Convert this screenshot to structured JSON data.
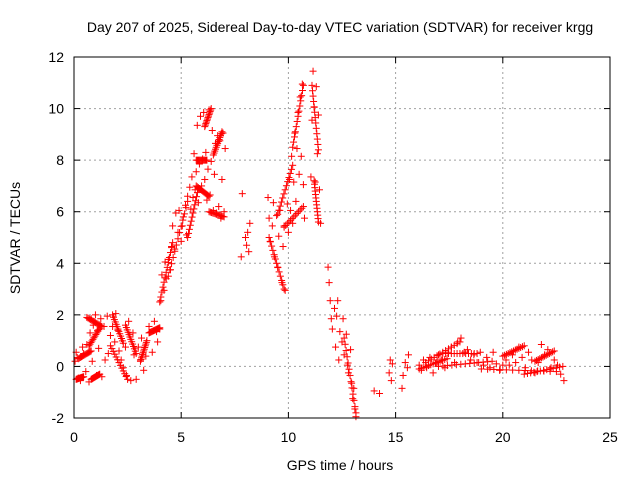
{
  "chart_data": {
    "type": "scatter",
    "title": "Day 207 of 2025, Sidereal Day-to-day VTEC variation (SDTVAR) for receiver krgg",
    "xlabel": "GPS time / hours",
    "ylabel": "SDTVAR / TECUs",
    "xlim": [
      0,
      25
    ],
    "ylim": [
      -2,
      12
    ],
    "xticks": [
      0,
      5,
      10,
      15,
      20,
      25
    ],
    "yticks": [
      -2,
      0,
      2,
      4,
      6,
      8,
      10,
      12
    ],
    "grid": true,
    "marker": "plus",
    "series": [
      {
        "name": "SDTVAR",
        "color": "#ff0000",
        "points": [
          [
            0.05,
            0.2
          ],
          [
            0.1,
            0.55
          ],
          [
            0.15,
            0.35
          ],
          [
            0.2,
            -0.45
          ],
          [
            0.3,
            -0.55
          ],
          [
            0.4,
            0.75
          ],
          [
            0.45,
            0.5
          ],
          [
            0.55,
            -0.2
          ],
          [
            0.6,
            0.85
          ],
          [
            0.7,
            -0.6
          ],
          [
            0.75,
            1.3
          ],
          [
            0.8,
            1.85
          ],
          [
            0.85,
            0.2
          ],
          [
            0.9,
            1.6
          ],
          [
            1.0,
            2.0
          ],
          [
            1.05,
            -0.35
          ],
          [
            1.1,
            1.4
          ],
          [
            1.15,
            0.7
          ],
          [
            1.25,
            1.85
          ],
          [
            1.3,
            -0.4
          ],
          [
            1.4,
            1.55
          ],
          [
            1.45,
            0.25
          ],
          [
            1.55,
            1.95
          ],
          [
            1.6,
            0.5
          ],
          [
            1.7,
            1.2
          ],
          [
            1.8,
            1.55
          ],
          [
            1.9,
            0.95
          ],
          [
            1.95,
            2.05
          ],
          [
            2.05,
            1.4
          ],
          [
            2.1,
            0.6
          ],
          [
            2.2,
            0.25
          ],
          [
            2.3,
            -0.05
          ],
          [
            2.4,
            0.75
          ],
          [
            2.45,
            -0.35
          ],
          [
            2.55,
            1.75
          ],
          [
            2.65,
            -0.55
          ],
          [
            2.75,
            1.3
          ],
          [
            2.8,
            0.45
          ],
          [
            2.9,
            -0.5
          ],
          [
            3.0,
            0.75
          ],
          [
            3.1,
            0.25
          ],
          [
            3.15,
            1.1
          ],
          [
            3.25,
            -0.15
          ],
          [
            3.35,
            0.4
          ],
          [
            3.5,
            1.55
          ],
          [
            3.65,
            0.55
          ],
          [
            3.75,
            1.75
          ],
          [
            3.85,
            1.35
          ],
          [
            3.9,
            0.95
          ],
          [
            4.0,
            1.45
          ],
          [
            4.05,
            2.55
          ],
          [
            4.1,
            3.55
          ],
          [
            4.2,
            2.95
          ],
          [
            4.25,
            4.05
          ],
          [
            4.3,
            3.4
          ],
          [
            4.4,
            4.15
          ],
          [
            4.5,
            3.75
          ],
          [
            4.55,
            4.65
          ],
          [
            4.6,
            5.45
          ],
          [
            4.7,
            4.55
          ],
          [
            4.75,
            5.95
          ],
          [
            4.85,
            5.2
          ],
          [
            4.9,
            6.05
          ],
          [
            5.0,
            4.85
          ],
          [
            5.05,
            5.45
          ],
          [
            5.1,
            5.8
          ],
          [
            5.2,
            6.25
          ],
          [
            5.25,
            5.1
          ],
          [
            5.3,
            6.6
          ],
          [
            5.4,
            6.95
          ],
          [
            5.45,
            6.1
          ],
          [
            5.5,
            7.35
          ],
          [
            5.55,
            6.55
          ],
          [
            5.6,
            8.25
          ],
          [
            5.65,
            6.85
          ],
          [
            5.7,
            7.55
          ],
          [
            5.75,
            9.35
          ],
          [
            5.8,
            6.35
          ],
          [
            5.85,
            7.85
          ],
          [
            5.9,
            9.7
          ],
          [
            5.95,
            7.0
          ],
          [
            6.0,
            8.05
          ],
          [
            6.05,
            9.85
          ],
          [
            6.1,
            7.25
          ],
          [
            6.15,
            8.3
          ],
          [
            6.2,
            6.45
          ],
          [
            6.25,
            7.65
          ],
          [
            6.3,
            9.95
          ],
          [
            6.35,
            6.65
          ],
          [
            6.4,
            7.95
          ],
          [
            6.45,
            9.15
          ],
          [
            6.5,
            6.05
          ],
          [
            6.55,
            7.45
          ],
          [
            6.6,
            8.65
          ],
          [
            6.65,
            5.95
          ],
          [
            6.7,
            8.95
          ],
          [
            6.75,
            6.2
          ],
          [
            6.8,
            8.75
          ],
          [
            6.85,
            5.75
          ],
          [
            6.9,
            7.25
          ],
          [
            6.95,
            9.05
          ],
          [
            7.0,
            6.0
          ],
          [
            7.05,
            8.45
          ],
          [
            7.8,
            4.25
          ],
          [
            7.85,
            6.7
          ],
          [
            8.0,
            5.0
          ],
          [
            8.05,
            4.7
          ],
          [
            8.1,
            5.2
          ],
          [
            8.15,
            4.45
          ],
          [
            8.2,
            5.55
          ],
          [
            9.05,
            6.55
          ],
          [
            9.1,
            5.75
          ],
          [
            9.15,
            4.85
          ],
          [
            9.25,
            5.45
          ],
          [
            9.3,
            6.35
          ],
          [
            9.35,
            4.25
          ],
          [
            9.45,
            5.85
          ],
          [
            9.5,
            3.85
          ],
          [
            9.55,
            5.05
          ],
          [
            9.6,
            6.05
          ],
          [
            9.7,
            3.25
          ],
          [
            9.75,
            4.65
          ],
          [
            9.8,
            5.45
          ],
          [
            9.85,
            2.95
          ],
          [
            9.95,
            6.3
          ],
          [
            10.0,
            5.2
          ],
          [
            10.05,
            7.25
          ],
          [
            10.1,
            6.05
          ],
          [
            10.15,
            8.15
          ],
          [
            10.2,
            5.55
          ],
          [
            10.25,
            7.15
          ],
          [
            10.3,
            9.05
          ],
          [
            10.35,
            6.4
          ],
          [
            10.4,
            8.45
          ],
          [
            10.45,
            9.85
          ],
          [
            10.5,
            7.45
          ],
          [
            10.55,
            10.45
          ],
          [
            10.6,
            8.15
          ],
          [
            10.65,
            10.95
          ],
          [
            10.7,
            7.05
          ],
          [
            10.75,
            5.75
          ],
          [
            11.05,
            7.35
          ],
          [
            11.1,
            9.55
          ],
          [
            11.15,
            11.45
          ],
          [
            11.2,
            10.05
          ],
          [
            11.25,
            7.15
          ],
          [
            11.3,
            10.85
          ],
          [
            11.35,
            8.25
          ],
          [
            11.4,
            9.75
          ],
          [
            11.45,
            6.85
          ],
          [
            11.5,
            5.55
          ],
          [
            11.85,
            3.85
          ],
          [
            11.9,
            3.25
          ],
          [
            11.95,
            2.55
          ],
          [
            12.0,
            1.85
          ],
          [
            12.05,
            1.45
          ],
          [
            12.15,
            2.25
          ],
          [
            12.2,
            0.75
          ],
          [
            12.25,
            1.95
          ],
          [
            12.3,
            2.55
          ],
          [
            12.35,
            0.25
          ],
          [
            12.4,
            1.35
          ],
          [
            12.5,
            0.95
          ],
          [
            12.55,
            1.85
          ],
          [
            12.6,
            0.45
          ],
          [
            12.7,
            1.25
          ],
          [
            12.75,
            0.05
          ],
          [
            12.8,
            -0.25
          ],
          [
            12.9,
            0.65
          ],
          [
            12.95,
            -0.65
          ],
          [
            13.0,
            -1.25
          ],
          [
            13.05,
            -0.85
          ],
          [
            13.1,
            -1.65
          ],
          [
            13.15,
            -1.95
          ],
          [
            14.0,
            -0.95
          ],
          [
            14.25,
            -1.05
          ],
          [
            14.7,
            -0.25
          ],
          [
            14.75,
            0.25
          ],
          [
            14.8,
            -0.55
          ],
          [
            14.85,
            0.1
          ],
          [
            15.3,
            -0.85
          ],
          [
            15.35,
            -0.35
          ],
          [
            15.45,
            0.15
          ],
          [
            15.55,
            -0.05
          ],
          [
            15.6,
            0.45
          ],
          [
            16.1,
            0.05
          ],
          [
            16.2,
            -0.15
          ],
          [
            16.3,
            0.25
          ],
          [
            16.45,
            -0.05
          ],
          [
            16.6,
            0.35
          ],
          [
            16.75,
            -0.25
          ],
          [
            16.9,
            0.15
          ],
          [
            17.0,
            0.45
          ],
          [
            17.15,
            0.25
          ],
          [
            17.3,
            -0.05
          ],
          [
            17.45,
            0.55
          ],
          [
            17.6,
            0.75
          ],
          [
            17.75,
            0.15
          ],
          [
            17.9,
            0.95
          ],
          [
            18.05,
            1.1
          ],
          [
            18.2,
            0.55
          ],
          [
            18.35,
            0.65
          ],
          [
            18.5,
            0.25
          ],
          [
            18.65,
            0.45
          ],
          [
            18.8,
            0.15
          ],
          [
            18.95,
            0.55
          ],
          [
            19.1,
            0.05
          ],
          [
            19.25,
            0.35
          ],
          [
            19.4,
            -0.05
          ],
          [
            19.55,
            0.55
          ],
          [
            19.7,
            0.1
          ],
          [
            19.85,
            -0.15
          ],
          [
            20.0,
            0.05
          ],
          [
            20.15,
            0.25
          ],
          [
            20.3,
            0.05
          ],
          [
            20.45,
            0.45
          ],
          [
            20.6,
            0.15
          ],
          [
            20.75,
            0.75
          ],
          [
            20.9,
            0.35
          ],
          [
            21.05,
            -0.05
          ],
          [
            21.2,
            0.55
          ],
          [
            21.35,
            0.25
          ],
          [
            21.5,
            -0.25
          ],
          [
            21.65,
            0.15
          ],
          [
            21.8,
            0.85
          ],
          [
            21.95,
            0.45
          ],
          [
            22.1,
            0.65
          ],
          [
            22.25,
            -0.05
          ],
          [
            22.4,
            0.25
          ],
          [
            22.55,
            0.05
          ],
          [
            22.7,
            -0.3
          ],
          [
            22.85,
            -0.55
          ]
        ],
        "strokes": [
          [
            [
              0.1,
              -0.5
            ],
            [
              0.45,
              -0.4
            ]
          ],
          [
            [
              0.2,
              0.3
            ],
            [
              0.8,
              0.6
            ]
          ],
          [
            [
              0.8,
              -0.5
            ],
            [
              1.2,
              -0.3
            ]
          ],
          [
            [
              0.6,
              1.9
            ],
            [
              1.3,
              1.55
            ]
          ],
          [
            [
              0.7,
              0.8
            ],
            [
              1.25,
              1.55
            ]
          ],
          [
            [
              1.7,
              0.8
            ],
            [
              2.5,
              -0.5
            ]
          ],
          [
            [
              1.8,
              2.0
            ],
            [
              2.3,
              0.9
            ]
          ],
          [
            [
              2.4,
              1.6
            ],
            [
              2.9,
              0.5
            ]
          ],
          [
            [
              3.1,
              0.2
            ],
            [
              3.4,
              1.0
            ]
          ],
          [
            [
              3.5,
              1.3
            ],
            [
              4.0,
              1.5
            ]
          ],
          [
            [
              4.0,
              2.5
            ],
            [
              4.6,
              4.8
            ]
          ],
          [
            [
              4.4,
              3.5
            ],
            [
              5.3,
              6.4
            ]
          ],
          [
            [
              5.3,
              5.0
            ],
            [
              5.8,
              6.9
            ]
          ],
          [
            [
              5.7,
              8.0
            ],
            [
              6.2,
              8.0
            ]
          ],
          [
            [
              5.7,
              7.0
            ],
            [
              6.3,
              6.6
            ]
          ],
          [
            [
              6.1,
              9.3
            ],
            [
              6.4,
              10.0
            ]
          ],
          [
            [
              6.3,
              6.0
            ],
            [
              7.0,
              5.8
            ]
          ],
          [
            [
              6.5,
              8.2
            ],
            [
              6.9,
              9.1
            ]
          ],
          [
            [
              9.1,
              5.0
            ],
            [
              9.8,
              3.0
            ]
          ],
          [
            [
              9.5,
              5.9
            ],
            [
              10.2,
              7.8
            ]
          ],
          [
            [
              9.8,
              5.4
            ],
            [
              10.7,
              6.2
            ]
          ],
          [
            [
              10.2,
              8.5
            ],
            [
              10.7,
              10.9
            ]
          ],
          [
            [
              11.1,
              10.9
            ],
            [
              11.4,
              8.4
            ]
          ],
          [
            [
              11.2,
              7.2
            ],
            [
              11.4,
              5.6
            ]
          ],
          [
            [
              12.6,
              1.1
            ],
            [
              13.15,
              -1.8
            ]
          ],
          [
            [
              16.1,
              -0.1
            ],
            [
              17.4,
              0.3
            ]
          ],
          [
            [
              16.4,
              0.15
            ],
            [
              18.0,
              0.95
            ]
          ],
          [
            [
              17.0,
              0.0
            ],
            [
              19.5,
              0.2
            ]
          ],
          [
            [
              17.2,
              0.5
            ],
            [
              18.8,
              0.5
            ]
          ],
          [
            [
              19.0,
              -0.1
            ],
            [
              22.5,
              -0.2
            ]
          ],
          [
            [
              20.0,
              0.4
            ],
            [
              21.0,
              0.8
            ]
          ],
          [
            [
              21.0,
              -0.3
            ],
            [
              22.8,
              0.0
            ]
          ],
          [
            [
              21.5,
              0.2
            ],
            [
              22.4,
              0.6
            ]
          ]
        ]
      }
    ]
  }
}
